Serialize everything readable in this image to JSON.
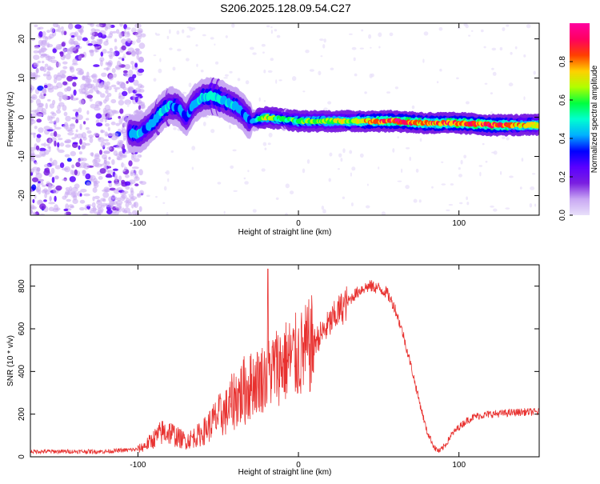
{
  "title": "S206.2025.128.09.54.C27",
  "colors": {
    "snr_line": "#e8312f",
    "axes": "#000000",
    "colormap": [
      "#e8e0fa",
      "#c9a8f3",
      "#7a1fe0",
      "#5a00ff",
      "#0000ff",
      "#00b0ff",
      "#00ffd0",
      "#00ff40",
      "#b0ff00",
      "#ffd000",
      "#ff4000",
      "#ff0060",
      "#ff00a0"
    ]
  },
  "chart_data": [
    {
      "type": "heatmap",
      "title": "",
      "xlabel": "Height of straight line (km)",
      "ylabel": "Frequency (Hz)",
      "xlim": [
        -167,
        150
      ],
      "ylim": [
        -25,
        24
      ],
      "xticks": [
        -100,
        0,
        100
      ],
      "yticks": [
        -20,
        -10,
        0,
        10,
        20
      ],
      "colorbar": {
        "label": "Normalized spectral amplitude",
        "range": [
          0,
          1
        ],
        "ticks": [
          0.0,
          0.2,
          0.4,
          0.6,
          0.8
        ]
      },
      "ridge": {
        "x": [
          -105,
          -100,
          -95,
          -90,
          -85,
          -80,
          -75,
          -70,
          -65,
          -60,
          -55,
          -50,
          -45,
          -40,
          -35,
          -30,
          -25,
          -20,
          -10,
          0,
          20,
          40,
          60,
          80,
          100,
          120,
          140,
          150
        ],
        "freq": [
          -4,
          -4.5,
          -3,
          -1,
          1.5,
          3,
          2.5,
          0,
          3.5,
          5,
          5.5,
          5,
          4,
          3,
          1.5,
          -1,
          -0.5,
          0,
          -0.5,
          -1,
          -1,
          -1,
          -1,
          -1.5,
          -1.5,
          -2,
          -2,
          -2
        ],
        "amplitude": [
          0.4,
          0.45,
          0.4,
          0.45,
          0.5,
          0.45,
          0.4,
          0.35,
          0.4,
          0.45,
          0.5,
          0.5,
          0.45,
          0.45,
          0.4,
          0.4,
          0.5,
          0.7,
          0.55,
          0.6,
          0.65,
          0.75,
          0.9,
          0.8,
          0.85,
          0.9,
          0.75,
          0.7
        ]
      }
    },
    {
      "type": "line",
      "title": "",
      "xlabel": "Height of straight line (km)",
      "ylabel": "SNR (10 * v/v)",
      "xlim": [
        -167,
        150
      ],
      "ylim": [
        0,
        900
      ],
      "xticks": [
        -100,
        0,
        100
      ],
      "yticks": [
        0,
        200,
        400,
        600,
        800
      ],
      "series": [
        {
          "x": [
            -167,
            -120,
            -100,
            -95,
            -90,
            -85,
            -80,
            -75,
            -70,
            -60,
            -50,
            -45,
            -40,
            -35,
            -30,
            -25,
            -20,
            -15,
            -10,
            -5,
            0,
            5,
            10,
            15,
            20,
            25,
            30,
            35,
            40,
            45,
            50,
            55,
            60,
            65,
            70,
            75,
            80,
            85,
            88,
            92,
            95,
            100,
            105,
            110,
            120,
            130,
            140,
            150
          ],
          "y": [
            25,
            25,
            35,
            55,
            85,
            115,
            115,
            90,
            75,
            110,
            190,
            210,
            270,
            300,
            340,
            360,
            380,
            420,
            440,
            460,
            470,
            500,
            540,
            580,
            630,
            680,
            720,
            760,
            790,
            800,
            790,
            770,
            700,
            580,
            430,
            270,
            120,
            40,
            25,
            60,
            100,
            140,
            170,
            190,
            200,
            205,
            210,
            210
          ]
        }
      ]
    }
  ]
}
